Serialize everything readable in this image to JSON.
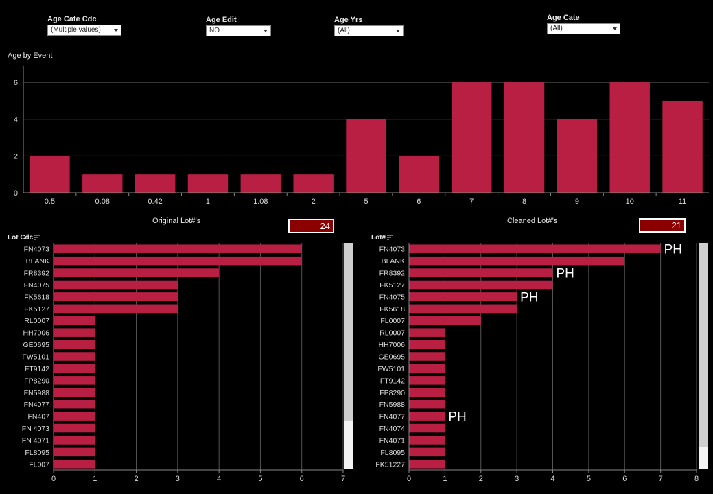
{
  "filters": [
    {
      "label": "Age Cate Cdc",
      "value": "(Multiple values)"
    },
    {
      "label": "Age Edit",
      "value": "NO"
    },
    {
      "label": "Age Yrs",
      "value": "(All)"
    },
    {
      "label": "Age Cate",
      "value": "(All)"
    }
  ],
  "top_chart_title": "Age by Event",
  "left_panel": {
    "title": "Original Lot#’s",
    "count": "24",
    "axis_label": "Lot Cdc"
  },
  "right_panel": {
    "title": "Cleaned Lot#’s",
    "count": "21",
    "axis_label": "Lot#"
  },
  "colors": {
    "bar": "#b91f42",
    "background": "#000000",
    "count_box": "#8b0000"
  },
  "icons": {
    "dropdown": "chevron-down-icon",
    "sort": "sort-icon"
  },
  "chart_data": [
    {
      "type": "bar",
      "title": "Age by Event",
      "categories": [
        "0.5",
        "0.08",
        "0.42",
        "1",
        "1.08",
        "2",
        "5",
        "6",
        "7",
        "8",
        "9",
        "10",
        "11"
      ],
      "values": [
        2,
        1,
        1,
        1,
        1,
        1,
        4,
        2,
        6,
        6,
        4,
        6,
        5
      ],
      "yticks": [
        0,
        2,
        4,
        6
      ],
      "ylim": [
        0,
        6.9
      ],
      "grid": true
    },
    {
      "type": "bar",
      "orientation": "horizontal",
      "title": "Original Lot#’s",
      "ylabel": "Lot Cdc",
      "categories": [
        "FN4073",
        "BLANK",
        "FR8392",
        "FN4075",
        "FK5618",
        "FK5127",
        "RL0007",
        "HH7006",
        "GE0695",
        "FW5101",
        "FT9142",
        "FP8290",
        "FN5988",
        "FN4077",
        "FN407",
        "FN 4073",
        "FN 4071",
        "FL8095",
        "FL007"
      ],
      "values": [
        6,
        6,
        4,
        3,
        3,
        3,
        1,
        1,
        1,
        1,
        1,
        1,
        1,
        1,
        1,
        1,
        1,
        1,
        1
      ],
      "xticks": [
        0,
        1,
        2,
        3,
        4,
        5,
        6,
        7
      ],
      "xlim": [
        0,
        7
      ],
      "grid": true
    },
    {
      "type": "bar",
      "orientation": "horizontal",
      "title": "Cleaned Lot#’s",
      "ylabel": "Lot#",
      "categories": [
        "FN4073",
        "BLANK",
        "FR8392",
        "FK5127",
        "FN4075",
        "FK5618",
        "FL0007",
        "RL0007",
        "HH7006",
        "GE0695",
        "FW5101",
        "FT9142",
        "FP8290",
        "FN5988",
        "FN4077",
        "FN4074",
        "FN4071",
        "FL8095",
        "FK51227"
      ],
      "values": [
        7,
        6,
        4,
        4,
        3,
        3,
        2,
        1,
        1,
        1,
        1,
        1,
        1,
        1,
        1,
        1,
        1,
        1,
        1
      ],
      "xticks": [
        0,
        1,
        2,
        3,
        4,
        5,
        6,
        7,
        8
      ],
      "xlim": [
        0,
        8
      ],
      "grid": true,
      "annotations": [
        {
          "category": "FN4073",
          "text": "PH"
        },
        {
          "category": "FR8392",
          "text": "PH"
        },
        {
          "category": "FN4075",
          "text": "PH"
        },
        {
          "category": "FN4077",
          "text": "PH"
        }
      ]
    }
  ]
}
